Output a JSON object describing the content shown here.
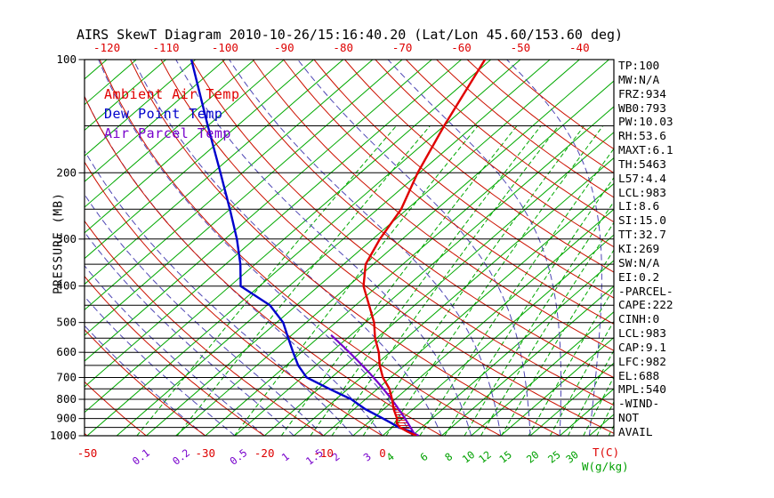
{
  "chart_data": {
    "type": "skewt",
    "title": "AIRS SkewT Diagram 2010-10-26/15:16:40.20 (Lat/Lon 45.60/153.60 deg)",
    "y_axis": {
      "label": "PRESSURE (MB)",
      "ticks": [
        100,
        200,
        300,
        400,
        500,
        600,
        700,
        800,
        900,
        1000
      ],
      "log": true,
      "isobar_step_mb": 50,
      "range_mb": [
        100,
        1000
      ]
    },
    "x_axis": {
      "temp_label": "T(C)",
      "mixing_label": "W(g/kg)",
      "top_temp_ticks_c": [
        -120,
        -110,
        -100,
        -90,
        -80,
        -70,
        -60,
        -50,
        -40
      ],
      "bottom_temp_ticks_c": [
        -50,
        -30,
        -20,
        -10,
        0
      ]
    },
    "grid": {
      "isotherms_c": {
        "min": -160,
        "max": 45,
        "step": 5
      },
      "dry_adiabats_theta_c": {
        "min": -60,
        "max": 150,
        "step": 10
      },
      "moist_adiabats_thetaw_c": {
        "min": -30,
        "max": 40,
        "step": 5
      },
      "mixing_ratio_lines_gkg": [
        0.1,
        0.2,
        0.5,
        1,
        1.5,
        2,
        3,
        4,
        6,
        8,
        10,
        12,
        15,
        20,
        25,
        30
      ],
      "mixing_ratio_unlabeled_gkg": [
        35,
        40,
        45
      ]
    },
    "legend": [
      {
        "label": "Ambient Air Temp",
        "color": "#e00000"
      },
      {
        "label": "Dew Point Temp",
        "color": "#0000cc"
      },
      {
        "label": "Air Parcel Temp",
        "color": "#7700cc"
      }
    ],
    "profiles": {
      "ambient_air_temp": [
        [
          1000,
          5.7
        ],
        [
          975,
          3.4
        ],
        [
          950,
          1.3
        ],
        [
          925,
          -0.1
        ],
        [
          900,
          -0.9
        ],
        [
          850,
          -3.3
        ],
        [
          800,
          -5.5
        ],
        [
          750,
          -8.0
        ],
        [
          700,
          -11.3
        ],
        [
          650,
          -14.2
        ],
        [
          600,
          -16.9
        ],
        [
          550,
          -20.3
        ],
        [
          500,
          -23.5
        ],
        [
          450,
          -27.7
        ],
        [
          400,
          -32.4
        ],
        [
          350,
          -36.3
        ],
        [
          300,
          -38.8
        ],
        [
          250,
          -41.0
        ],
        [
          200,
          -45.3
        ],
        [
          150,
          -50.0
        ],
        [
          100,
          -56.0
        ]
      ],
      "dew_point_temp": [
        [
          1000,
          5.4
        ],
        [
          975,
          4.0
        ],
        [
          950,
          1.1
        ],
        [
          925,
          -1.0
        ],
        [
          900,
          -3.3
        ],
        [
          850,
          -8.1
        ],
        [
          800,
          -12.4
        ],
        [
          750,
          -18.2
        ],
        [
          700,
          -24.2
        ],
        [
          650,
          -28.0
        ],
        [
          600,
          -31.4
        ],
        [
          550,
          -35.0
        ],
        [
          500,
          -38.9
        ],
        [
          450,
          -44.5
        ],
        [
          400,
          -53.2
        ],
        [
          350,
          -57.5
        ],
        [
          300,
          -63.0
        ],
        [
          250,
          -70.0
        ],
        [
          200,
          -78.7
        ],
        [
          150,
          -90.0
        ],
        [
          100,
          -105.7
        ]
      ],
      "parcel": {
        "surface_p_mb": 1000,
        "surface_t_c": 6.1,
        "lcl_p_mb": 983,
        "top_p_mb": 540
      }
    },
    "cape_area": {
      "p_bottom_mb": 1000,
      "p_top_mb": 765
    },
    "stats": [
      "TP:100",
      "MW:N/A",
      "FRZ:934",
      "WB0:793",
      "PW:10.03",
      "RH:53.6",
      "MAXT:6.1",
      "TH:5463",
      "L57:4.4",
      "LCL:983",
      "LI:8.6",
      "SI:15.0",
      "TT:32.7",
      "KI:269",
      "SW:N/A",
      "EI:0.2",
      "-PARCEL-",
      "CAPE:222",
      "CINH:0",
      "LCL:983",
      "CAP:9.1",
      "LFC:982",
      "EL:688",
      "MPL:540",
      "-WIND-",
      "NOT",
      "AVAIL"
    ],
    "colors": {
      "isotherm": "#00a800",
      "mixing_ratio": "#00a800",
      "dry_adiabat": "#cc1100",
      "moist_adiabat": "#4e46b4",
      "isobar": "#000000",
      "ambient": "#e00000",
      "dewpoint": "#0000cc",
      "parcel": "#7700cc",
      "cape_hatch": "#dd0000",
      "temp_tick": "#dd0000",
      "mixing_label_small": "#7700cc",
      "mixing_label_large": "#00a000"
    }
  }
}
